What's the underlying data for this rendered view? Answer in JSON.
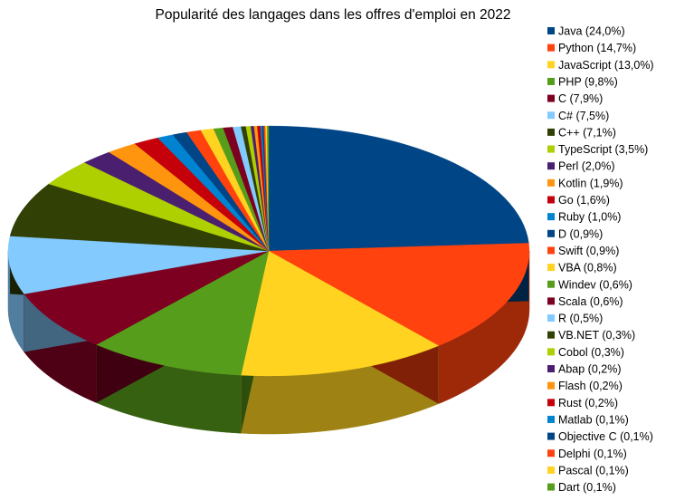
{
  "chart_data": {
    "type": "pie",
    "title": "Popularité des langages dans les offres d'emploi en 2022",
    "series": [
      {
        "name": "Java (24,0%)",
        "value": 24.0,
        "color": "#004586"
      },
      {
        "name": "Python (14,7%)",
        "value": 14.7,
        "color": "#ff420e"
      },
      {
        "name": "JavaScript (13,0%)",
        "value": 13.0,
        "color": "#ffd320"
      },
      {
        "name": "PHP (9,8%)",
        "value": 9.8,
        "color": "#579d1c"
      },
      {
        "name": "C (7,9%)",
        "value": 7.9,
        "color": "#7e0021"
      },
      {
        "name": "C# (7,5%)",
        "value": 7.5,
        "color": "#83caff"
      },
      {
        "name": "C++ (7,1%)",
        "value": 7.1,
        "color": "#314004"
      },
      {
        "name": "TypeScript (3,5%)",
        "value": 3.5,
        "color": "#aecf00"
      },
      {
        "name": "Perl (2,0%)",
        "value": 2.0,
        "color": "#4b1f6f"
      },
      {
        "name": "Kotlin (1,9%)",
        "value": 1.9,
        "color": "#ff950e"
      },
      {
        "name": "Go (1,6%)",
        "value": 1.6,
        "color": "#c5000b"
      },
      {
        "name": "Ruby (1,0%)",
        "value": 1.0,
        "color": "#0084d1"
      },
      {
        "name": "D (0,9%)",
        "value": 0.9,
        "color": "#004586"
      },
      {
        "name": "Swift (0,9%)",
        "value": 0.9,
        "color": "#ff420e"
      },
      {
        "name": "VBA (0,8%)",
        "value": 0.8,
        "color": "#ffd320"
      },
      {
        "name": "Windev (0,6%)",
        "value": 0.6,
        "color": "#579d1c"
      },
      {
        "name": "Scala (0,6%)",
        "value": 0.6,
        "color": "#7e0021"
      },
      {
        "name": "R (0,5%)",
        "value": 0.5,
        "color": "#83caff"
      },
      {
        "name": "VB.NET (0,3%)",
        "value": 0.3,
        "color": "#314004"
      },
      {
        "name": "Cobol (0,3%)",
        "value": 0.3,
        "color": "#aecf00"
      },
      {
        "name": "Abap (0,2%)",
        "value": 0.2,
        "color": "#4b1f6f"
      },
      {
        "name": "Flash (0,2%)",
        "value": 0.2,
        "color": "#ff950e"
      },
      {
        "name": "Rust (0,2%)",
        "value": 0.2,
        "color": "#c5000b"
      },
      {
        "name": "Matlab (0,1%)",
        "value": 0.1,
        "color": "#0084d1"
      },
      {
        "name": "Objective C (0,1%)",
        "value": 0.1,
        "color": "#004586"
      },
      {
        "name": "Delphi (0,1%)",
        "value": 0.1,
        "color": "#ff420e"
      },
      {
        "name": "Pascal (0,1%)",
        "value": 0.1,
        "color": "#ffd320"
      },
      {
        "name": "Dart (0,1%)",
        "value": 0.1,
        "color": "#579d1c"
      }
    ],
    "legend_position": "right",
    "style": "3d"
  }
}
